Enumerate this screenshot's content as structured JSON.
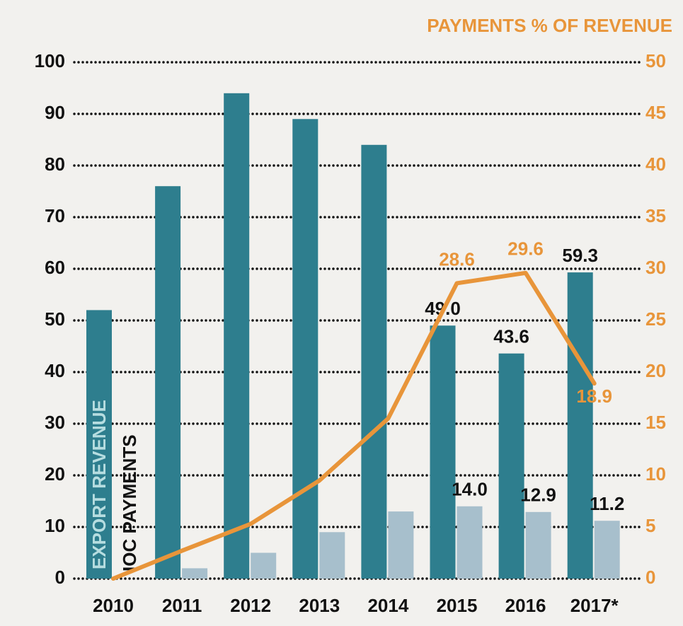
{
  "chart_data": {
    "type": "bar",
    "categories": [
      "2010",
      "2011",
      "2012",
      "2013",
      "2014",
      "2015",
      "2016",
      "2017*"
    ],
    "series": [
      {
        "name": "EXPORT REVENUE",
        "color": "#2e7e8e",
        "values": [
          52,
          76,
          94,
          89,
          84,
          49,
          43.6,
          59.3
        ],
        "value_labels": [
          null,
          null,
          null,
          null,
          null,
          "49.0",
          "43.6",
          "59.3"
        ]
      },
      {
        "name": "IOC PAYMENTS",
        "color": "#a7bfcc",
        "values": [
          0,
          2,
          5,
          9,
          13,
          14,
          12.9,
          11.2
        ],
        "value_labels": [
          null,
          null,
          null,
          null,
          null,
          "14.0",
          "12.9",
          "11.2"
        ]
      },
      {
        "name": "PAYMENTS % OF REVENUE",
        "type": "line",
        "axis": "y2",
        "color": "#e8953a",
        "values": [
          0,
          2.7,
          5.3,
          9.5,
          15.5,
          28.6,
          29.6,
          18.9
        ],
        "value_labels": [
          null,
          null,
          null,
          null,
          null,
          "28.6",
          "29.6",
          "18.9"
        ]
      }
    ],
    "ylim": [
      0,
      100
    ],
    "yticks": [
      0,
      10,
      20,
      30,
      40,
      50,
      60,
      70,
      80,
      90,
      100
    ],
    "y2lim": [
      0,
      50
    ],
    "y2ticks": [
      0,
      5,
      10,
      15,
      20,
      25,
      30,
      35,
      40,
      45,
      50
    ],
    "grid": true
  }
}
